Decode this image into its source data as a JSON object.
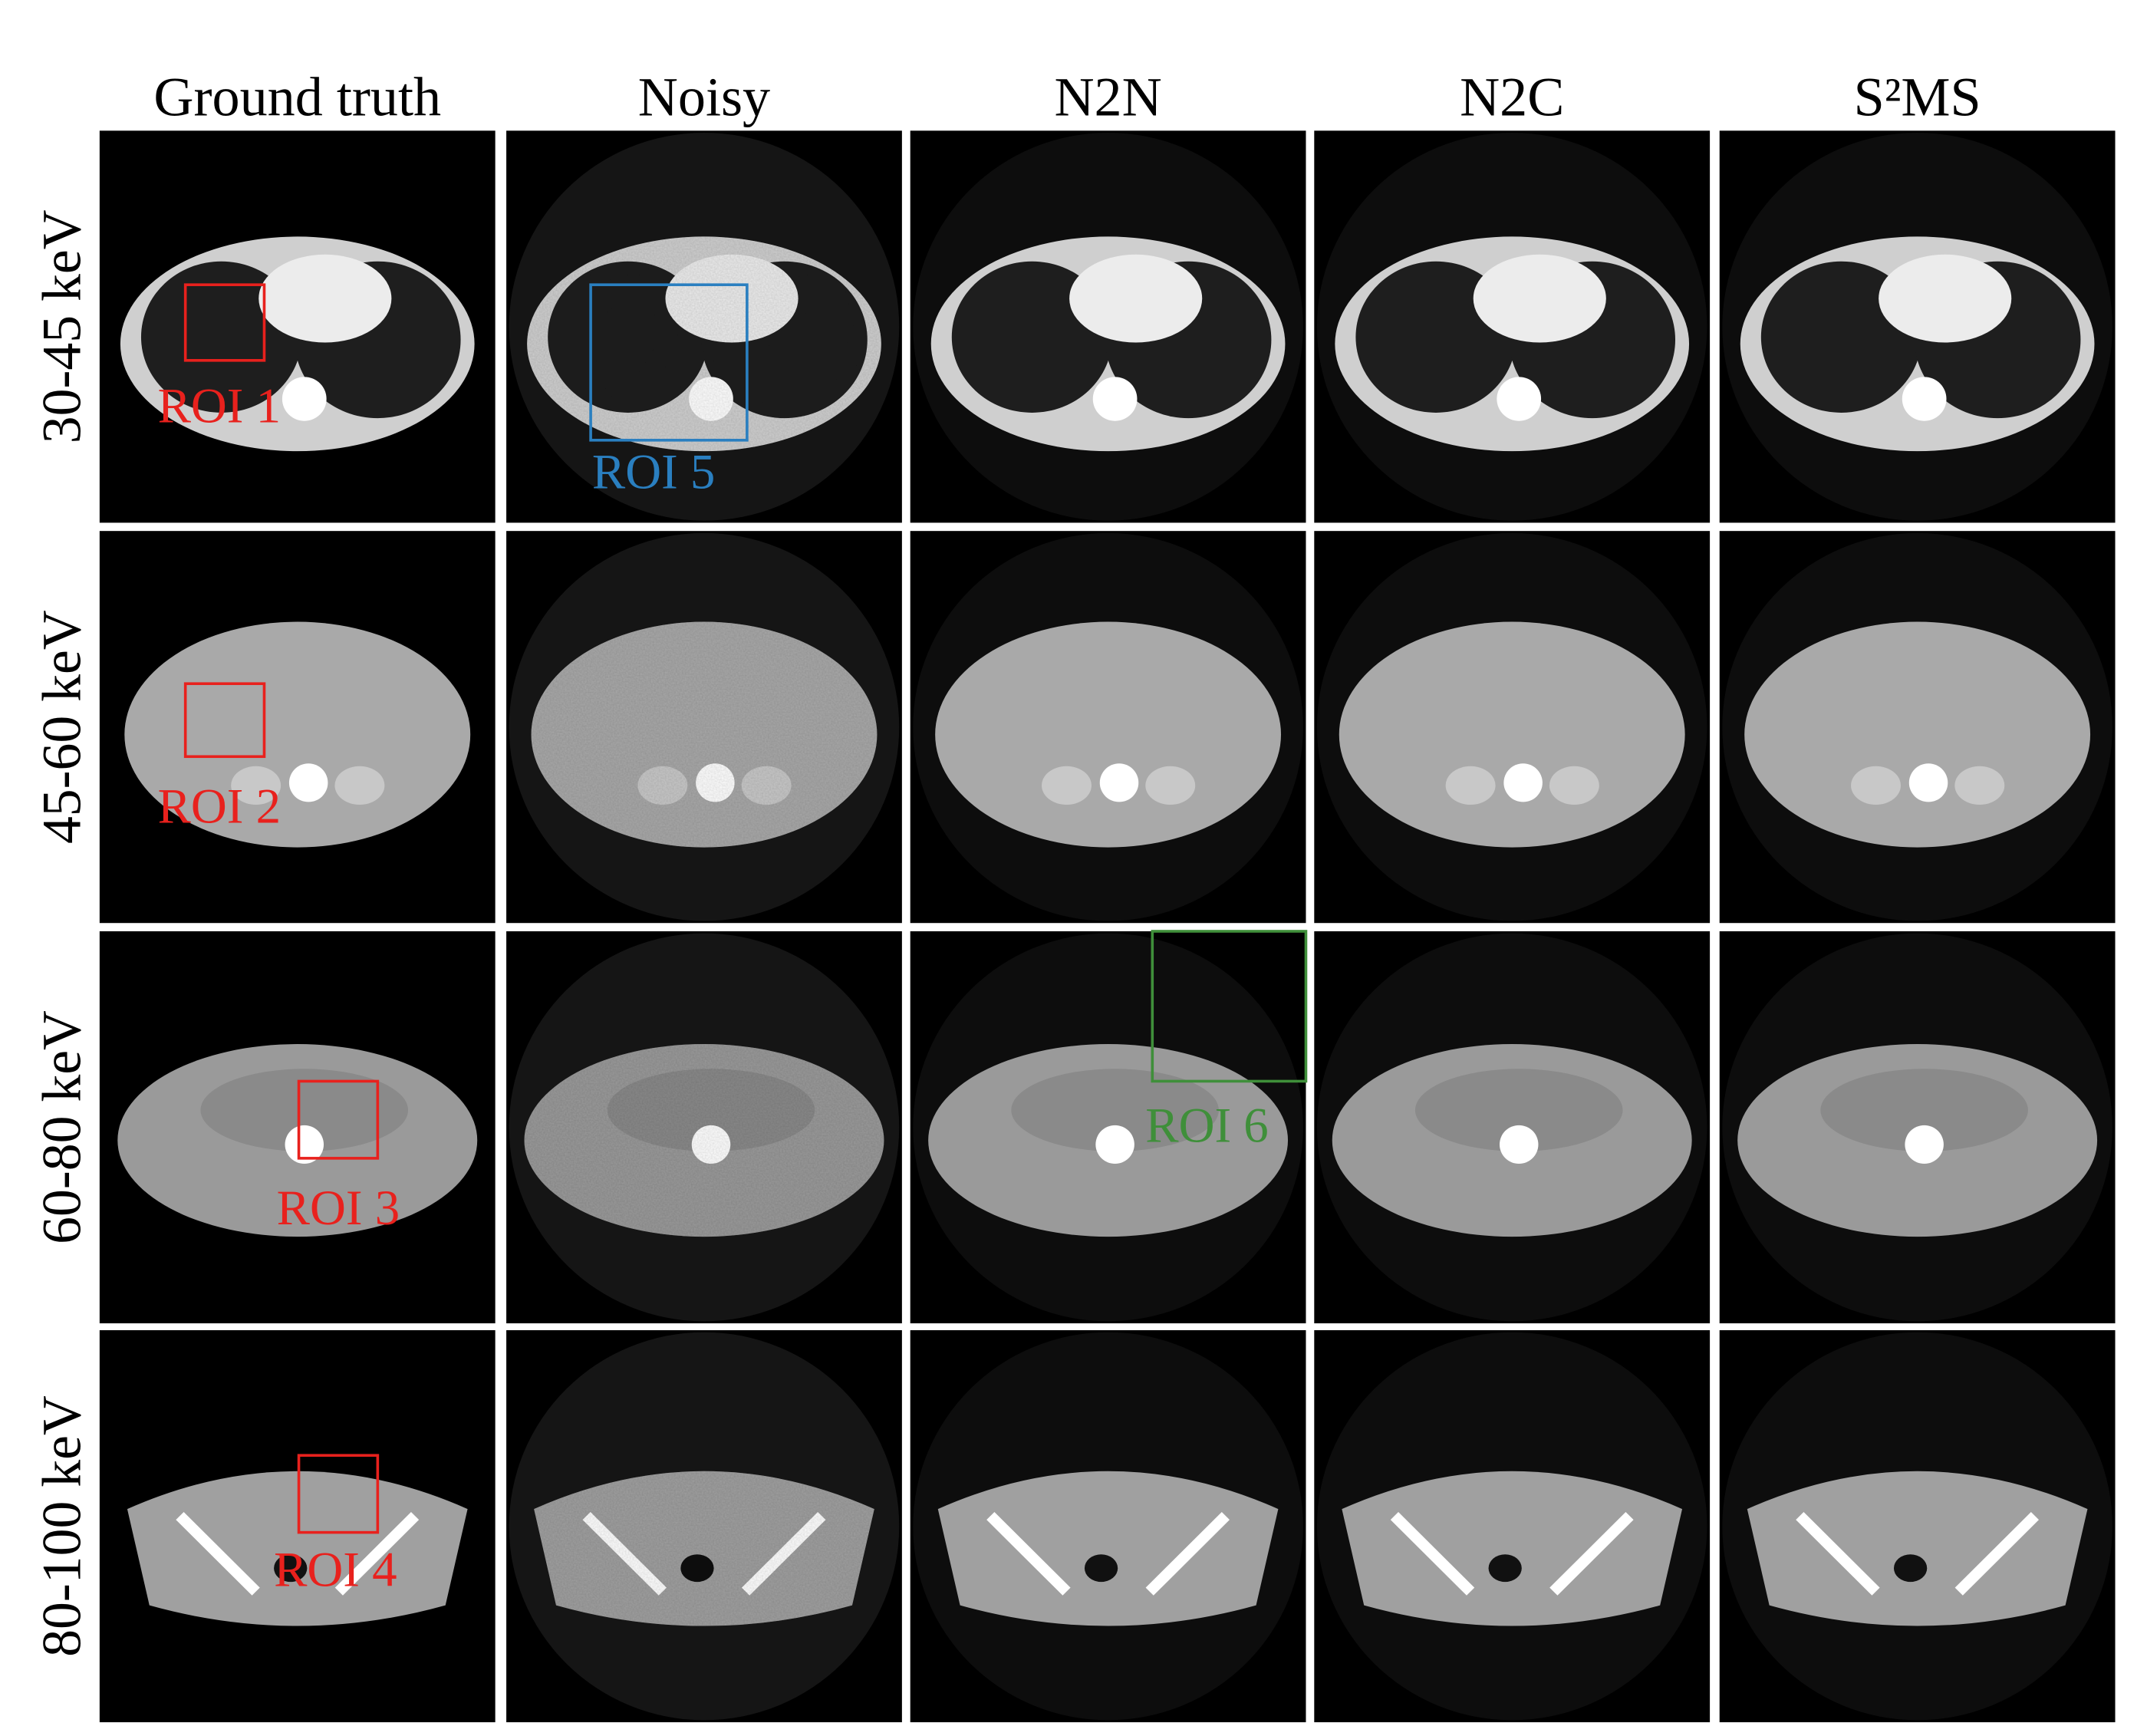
{
  "columns": [
    "Ground truth",
    "Noisy",
    "N2N",
    "N2C",
    "S²MS"
  ],
  "rows": [
    "30-45 keV",
    "45-60 keV",
    "60-80 keV",
    "80-100 keV"
  ],
  "rois": [
    {
      "label": "ROI 1"
    },
    {
      "label": "ROI 5"
    },
    {
      "label": "ROI 2"
    },
    {
      "label": "ROI 3"
    },
    {
      "label": "ROI 6"
    },
    {
      "label": "ROI 4"
    }
  ]
}
